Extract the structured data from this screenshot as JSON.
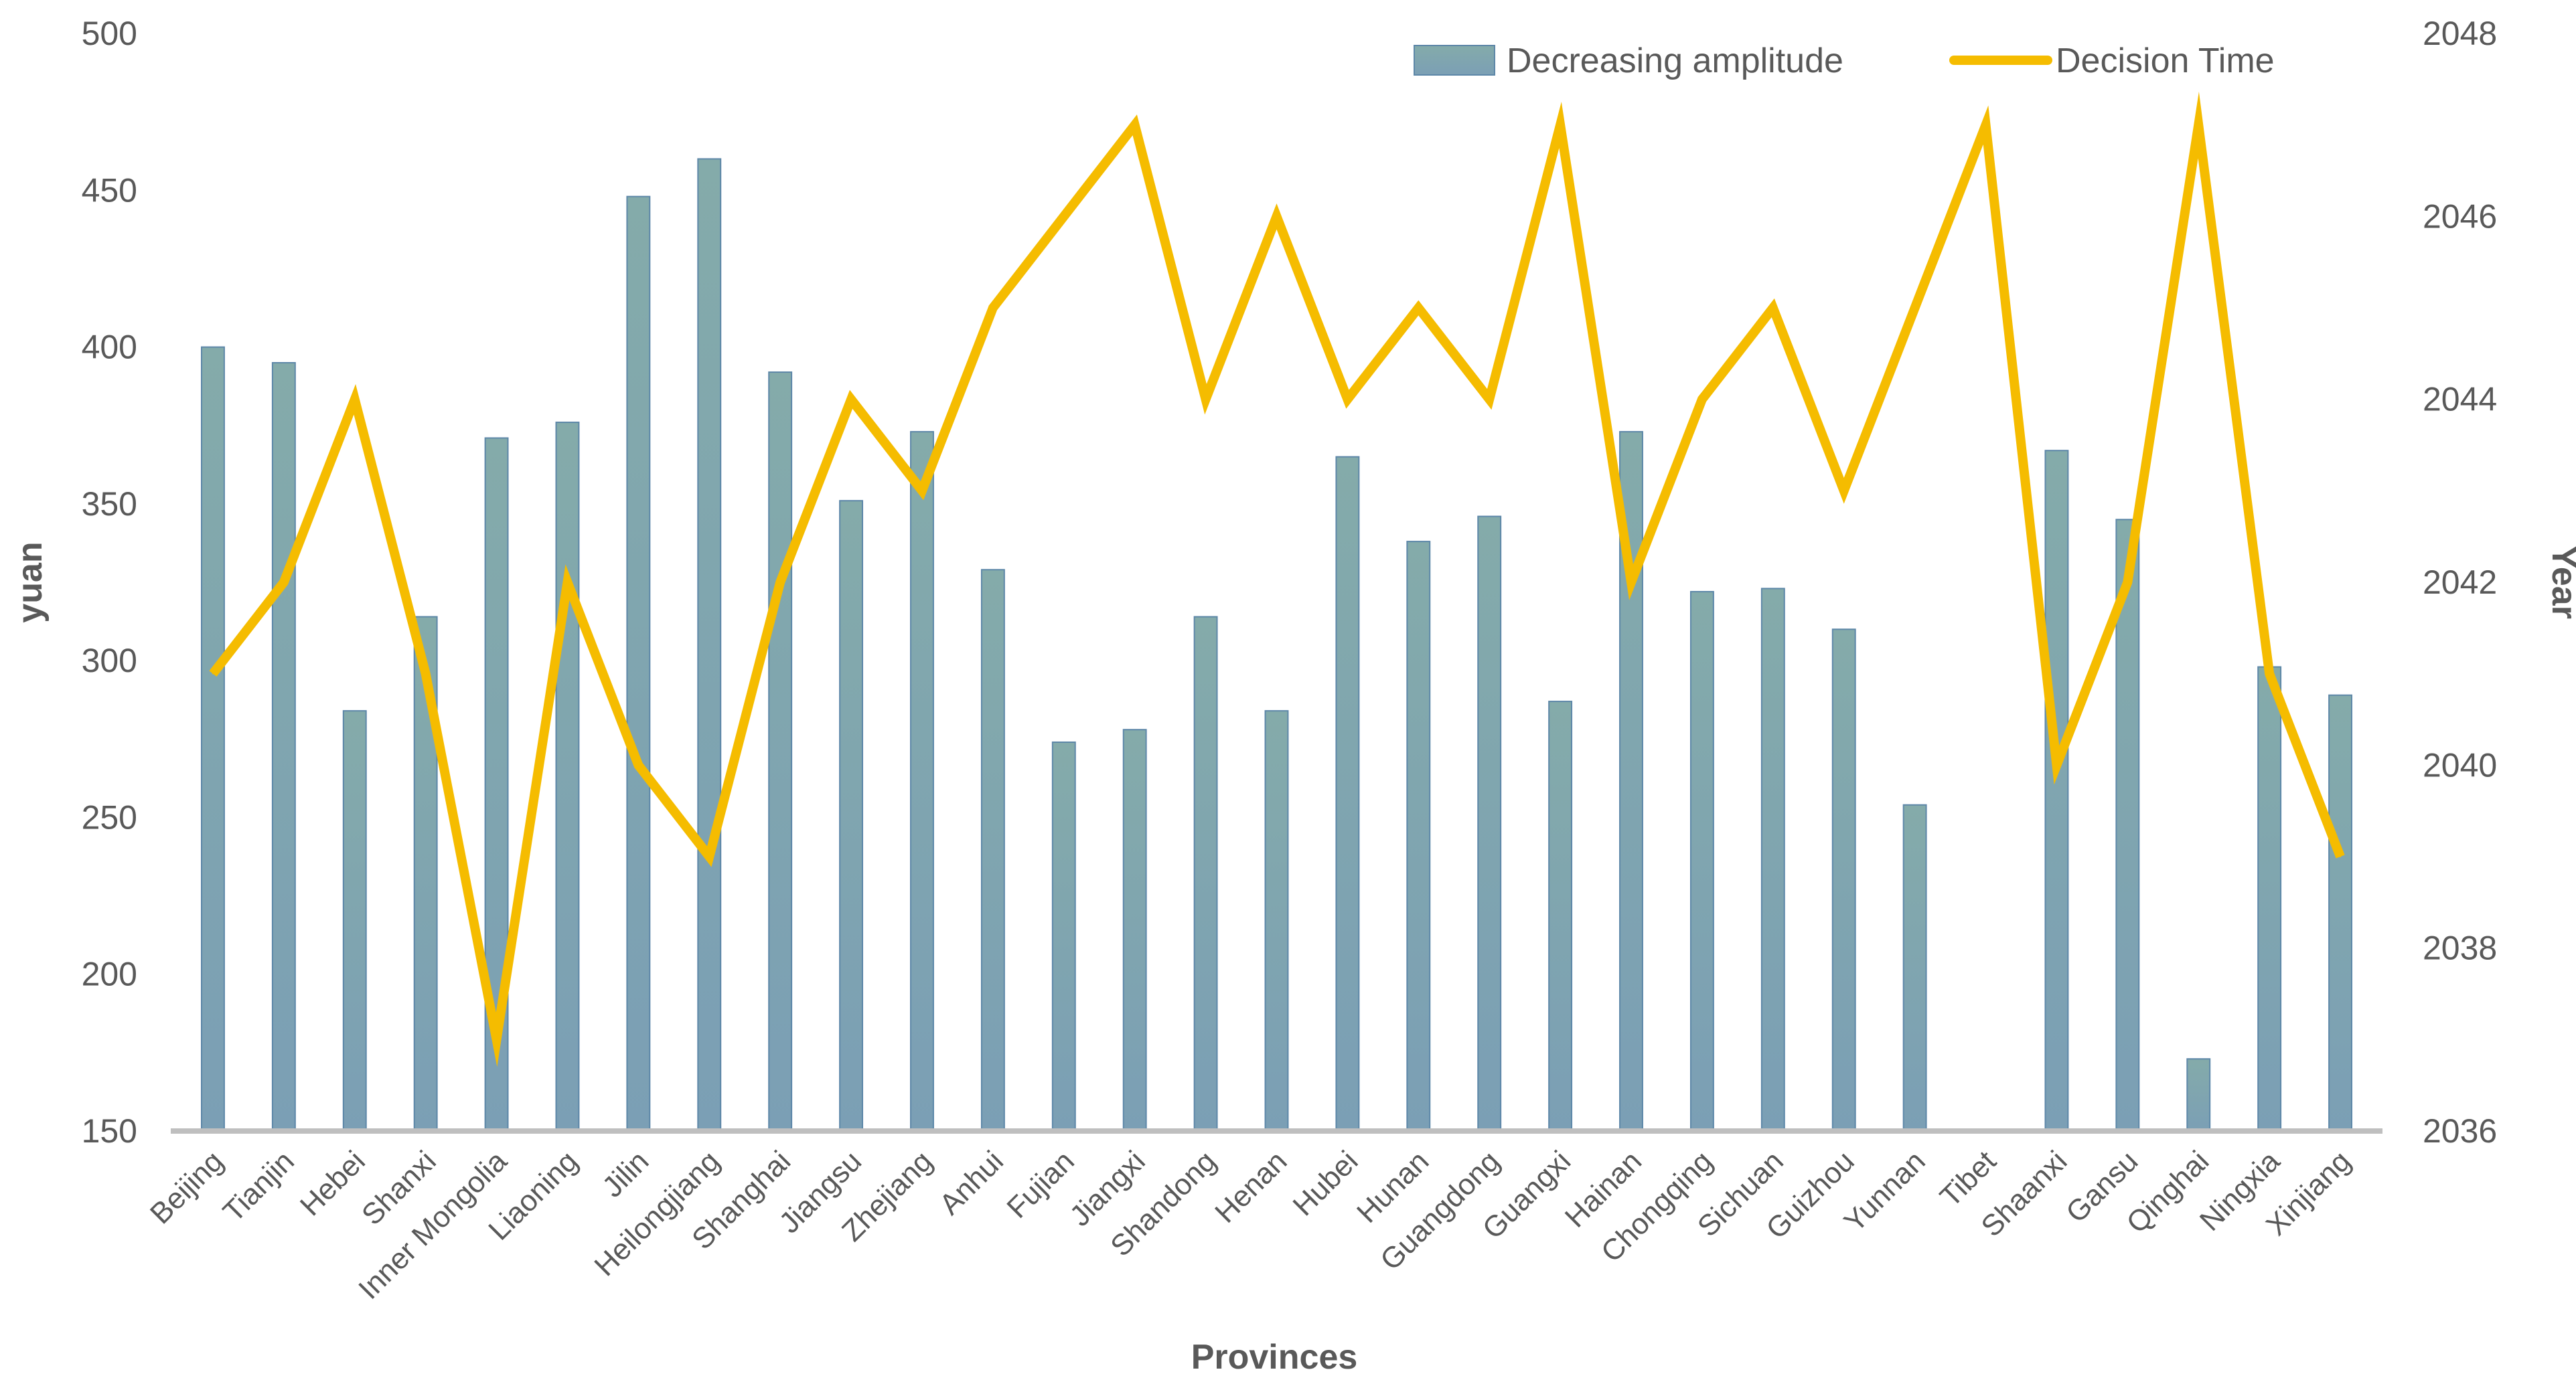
{
  "chart_data": {
    "type": "bar+line",
    "title": "",
    "xlabel": "Provinces",
    "ylabel": "yuan",
    "y2label": "Year",
    "ylim": [
      150,
      500
    ],
    "y_ticks": [
      150,
      200,
      250,
      300,
      350,
      400,
      450,
      500
    ],
    "y2lim": [
      2036,
      2048
    ],
    "y2_ticks": [
      2036,
      2038,
      2040,
      2042,
      2044,
      2046,
      2048
    ],
    "categories": [
      "Beijing",
      "Tianjin",
      "Hebei",
      "Shanxi",
      "Inner Mongolia",
      "Liaoning",
      "Jilin",
      "Heilongjiang",
      "Shanghai",
      "Jiangsu",
      "Zhejiang",
      "Anhui",
      "Fujian",
      "Jiangxi",
      "Shandong",
      "Henan",
      "Hubei",
      "Hunan",
      "Guangdong",
      "Guangxi",
      "Hainan",
      "Chongqing",
      "Sichuan",
      "Guizhou",
      "Yunnan",
      "Tibet",
      "Shaanxi",
      "Gansu",
      "Qinghai",
      "Ningxia",
      "Xinjiang"
    ],
    "series": [
      {
        "name": "Decreasing amplitude",
        "kind": "bar",
        "axis": "left",
        "color": "#7fa8a6",
        "values": [
          400,
          395,
          284,
          314,
          371,
          376,
          448,
          460,
          392,
          351,
          373,
          329,
          274,
          278,
          314,
          284,
          365,
          338,
          346,
          287,
          373,
          322,
          323,
          310,
          254,
          null,
          367,
          345,
          173,
          298,
          289
        ]
      },
      {
        "name": "Decision Time",
        "kind": "line",
        "axis": "right",
        "color": "#f5bc00",
        "values": [
          2041,
          2042,
          2044,
          2041,
          2037,
          2042,
          2040,
          2039,
          2042,
          2044,
          2043,
          2045,
          2046,
          2047,
          2044,
          2046,
          2044,
          2045,
          2044,
          2047,
          2042,
          2044,
          2045,
          2043,
          2045,
          2047,
          2040,
          2042,
          2047,
          2041,
          2039
        ]
      }
    ],
    "legend": {
      "position": "top-right",
      "entries": [
        "Decreasing amplitude",
        "Decision Time"
      ]
    },
    "colors": {
      "bar_fill_top": "#84abaa",
      "bar_fill_bottom": "#7b9fb5",
      "bar_edge": "#5d87a8",
      "line": "#f5bc00",
      "axis_line": "#bfbfbf",
      "text": "#595959"
    }
  }
}
